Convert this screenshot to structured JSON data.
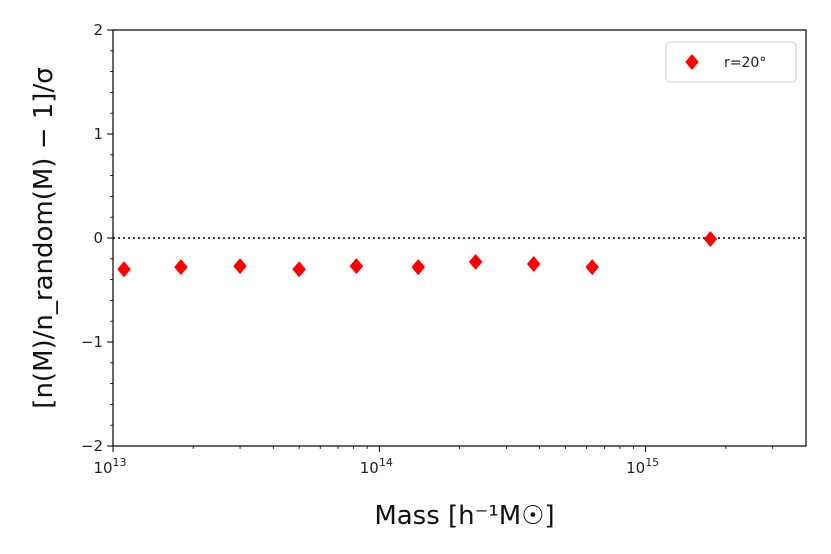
{
  "chart_data": {
    "type": "scatter",
    "xscale": "log",
    "xlim": [
      10000000000000.0,
      4000000000000000.0
    ],
    "ylim": [
      -2,
      2
    ],
    "xlabel": "Mass [h⁻¹M☉]",
    "ylabel": "[n(M)/n_random(M) − 1]/σ",
    "x_ticks": [
      {
        "value": 10000000000000.0,
        "base": "10",
        "exp": "13"
      },
      {
        "value": 100000000000000.0,
        "base": "10",
        "exp": "14"
      },
      {
        "value": 1000000000000000.0,
        "base": "10",
        "exp": "15"
      }
    ],
    "y_ticks": [
      -2,
      -1,
      0,
      1,
      2
    ],
    "reference_line": {
      "y": 0,
      "style": "dotted",
      "color": "#000000"
    },
    "legend": {
      "placement": "top-right"
    },
    "series": [
      {
        "name": "r=20°",
        "color": "#ff0000",
        "marker": "diamond",
        "points": [
          {
            "x": 11000000000000.0,
            "y": -0.3
          },
          {
            "x": 18000000000000.0,
            "y": -0.28
          },
          {
            "x": 30000000000000.0,
            "y": -0.27
          },
          {
            "x": 50000000000000.0,
            "y": -0.3
          },
          {
            "x": 82000000000000.0,
            "y": -0.27
          },
          {
            "x": 140000000000000.0,
            "y": -0.28
          },
          {
            "x": 230000000000000.0,
            "y": -0.23
          },
          {
            "x": 380000000000000.0,
            "y": -0.25
          },
          {
            "x": 630000000000000.0,
            "y": -0.28
          },
          {
            "x": 1750000000000000.0,
            "y": -0.01
          }
        ]
      }
    ]
  }
}
